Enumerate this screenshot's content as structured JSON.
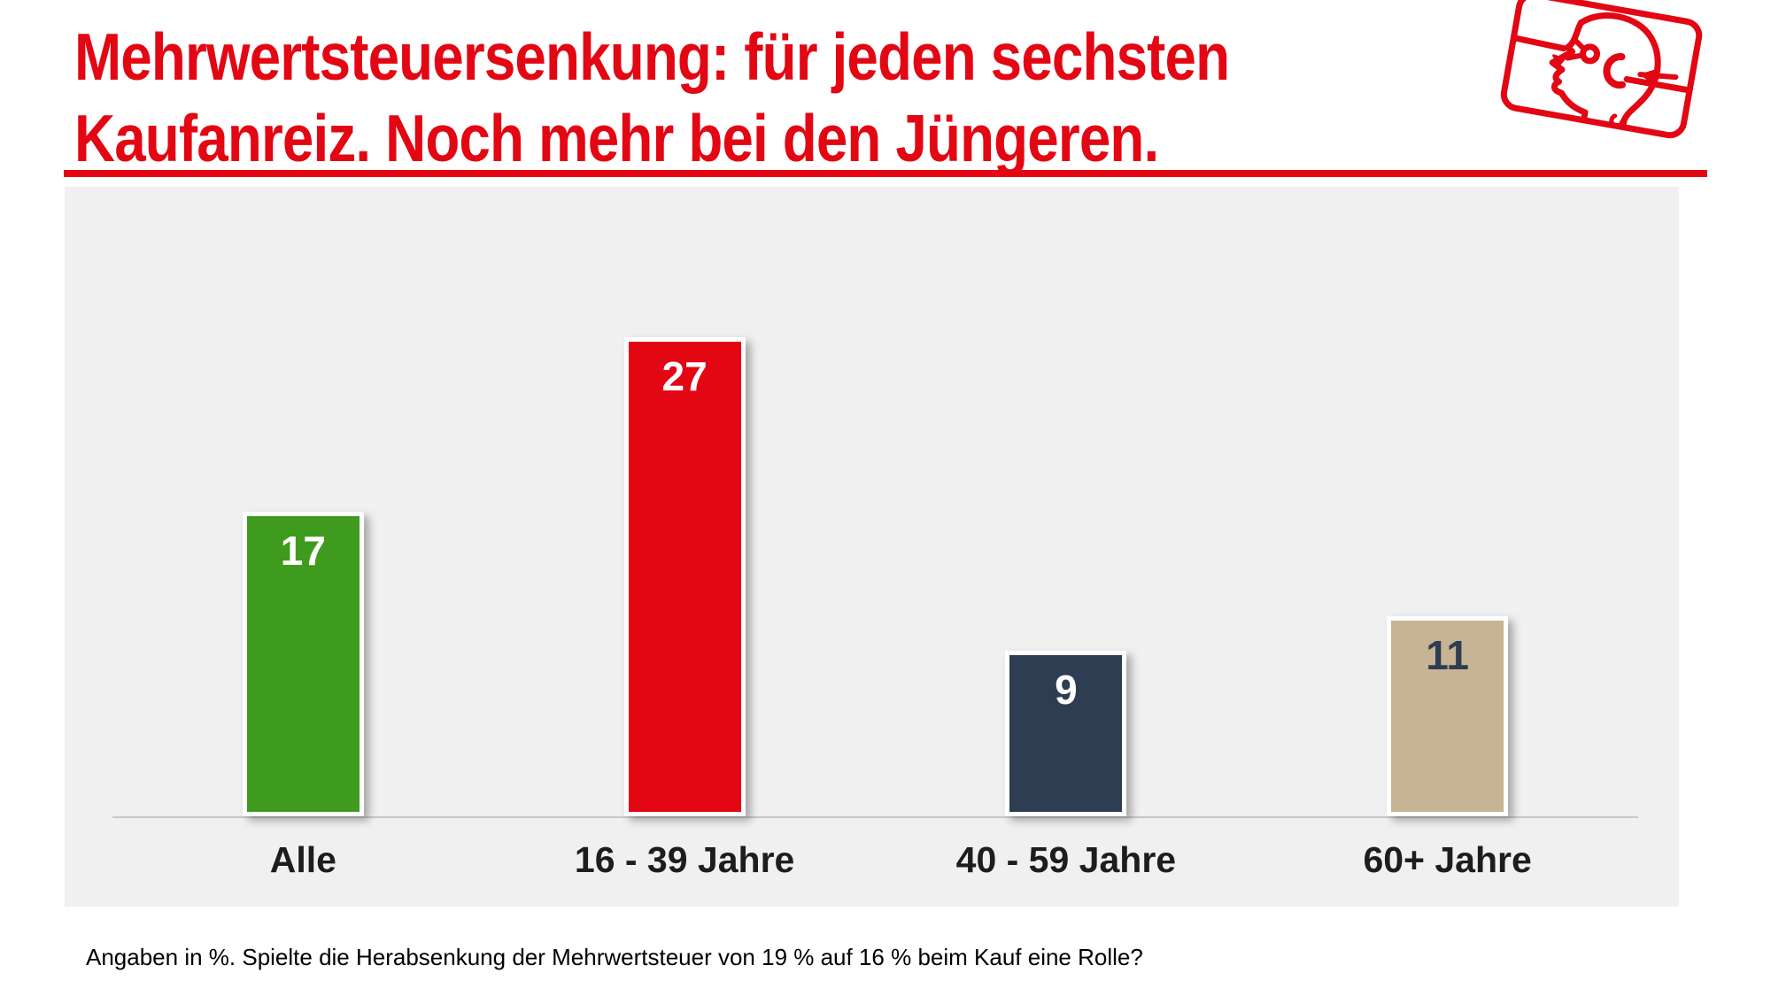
{
  "header": {
    "title_line1": "Mehrwertsteuersenkung: für jeden sechsten",
    "title_line2": "Kaufanreiz. Noch mehr bei den Jüngeren.",
    "accent_color": "#e30613"
  },
  "logo": {
    "icon": "head-listening-sketch",
    "color": "#e30613"
  },
  "chart_data": {
    "type": "bar",
    "title": "Mehrwertsteuersenkung: für jeden sechsten Kaufanreiz. Noch mehr bei den Jüngeren.",
    "categories": [
      "Alle",
      "16 - 39 Jahre",
      "40 - 59 Jahre",
      "60+ Jahre"
    ],
    "values": [
      17,
      27,
      9,
      11
    ],
    "unit": "%",
    "bar_colors": [
      "#3e9b1e",
      "#e30613",
      "#2e3d51",
      "#c7b495"
    ],
    "value_label_colors": [
      "#ffffff",
      "#ffffff",
      "#ffffff",
      "#2e3d51"
    ],
    "plot_background": "#f0f0f0",
    "axis_color": "#c9c9c9",
    "xlabel": "",
    "ylabel": "",
    "ylim": [
      0,
      36
    ],
    "grid": false,
    "legend": false
  },
  "footnote": "Angaben in %. Spielte die Herabsenkung der Mehrwertsteuer von 19 % auf 16 % beim Kauf eine Rolle?"
}
